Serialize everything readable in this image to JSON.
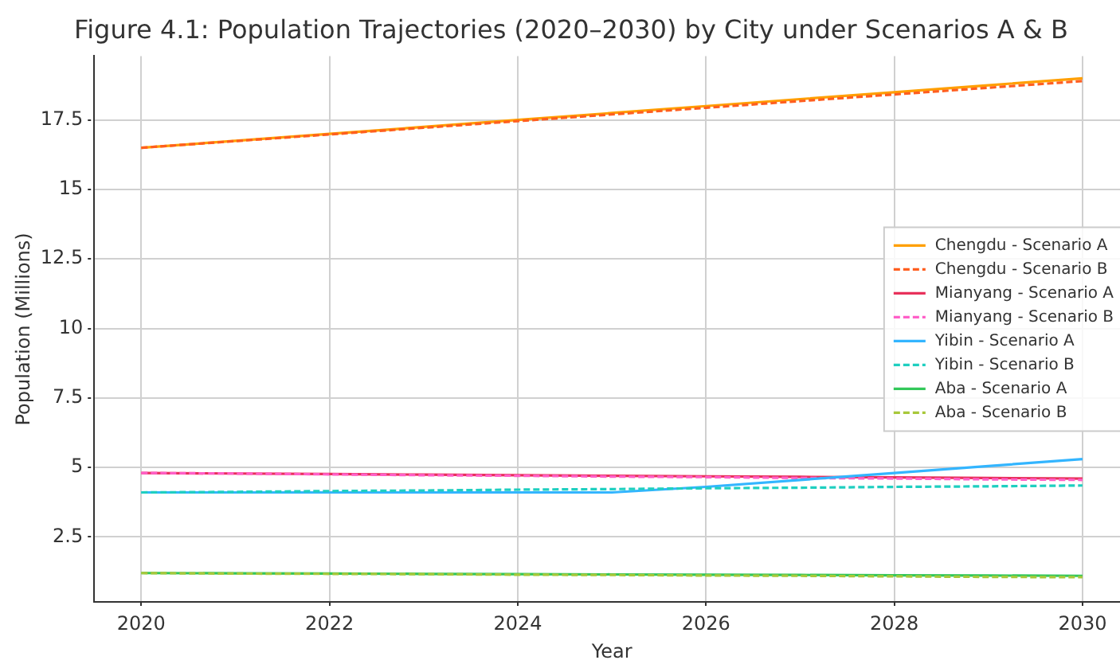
{
  "chart_data": {
    "type": "line",
    "title": "Figure 4.1: Population Trajectories (2020–2030) by City under Scenarios A & B",
    "xlabel": "Year",
    "ylabel": "Population (Millions)",
    "x": [
      2020,
      2021,
      2022,
      2023,
      2024,
      2025,
      2026,
      2027,
      2028,
      2029,
      2030
    ],
    "series": [
      {
        "name": "Chengdu - Scenario A",
        "color": "#ff9f00",
        "line_style": "solid",
        "values": [
          16.5,
          16.75,
          17.0,
          17.25,
          17.5,
          17.75,
          18.0,
          18.25,
          18.5,
          18.75,
          19.0
        ]
      },
      {
        "name": "Chengdu - Scenario B",
        "color": "#ff5e1f",
        "line_style": "dashed",
        "values": [
          16.5,
          16.74,
          16.98,
          17.22,
          17.46,
          17.7,
          17.94,
          18.18,
          18.42,
          18.66,
          18.9
        ]
      },
      {
        "name": "Mianyang - Scenario A",
        "color": "#e8315b",
        "line_style": "solid",
        "values": [
          4.8,
          4.78,
          4.76,
          4.74,
          4.72,
          4.7,
          4.68,
          4.66,
          4.64,
          4.62,
          4.6
        ]
      },
      {
        "name": "Mianyang - Scenario B",
        "color": "#ff5fc8",
        "line_style": "dashed",
        "values": [
          4.8,
          4.78,
          4.75,
          4.72,
          4.7,
          4.67,
          4.65,
          4.62,
          4.6,
          4.57,
          4.55
        ]
      },
      {
        "name": "Yibin - Scenario A",
        "color": "#33b5ff",
        "line_style": "solid",
        "values": [
          4.1,
          4.1,
          4.1,
          4.1,
          4.1,
          4.1,
          4.3,
          4.55,
          4.8,
          5.05,
          5.3
        ]
      },
      {
        "name": "Yibin - Scenario B",
        "color": "#1fcfc0",
        "line_style": "dashed",
        "values": [
          4.1,
          4.12,
          4.15,
          4.17,
          4.2,
          4.22,
          4.25,
          4.27,
          4.3,
          4.32,
          4.35
        ]
      },
      {
        "name": "Aba - Scenario A",
        "color": "#33c85a",
        "line_style": "solid",
        "values": [
          1.2,
          1.19,
          1.18,
          1.17,
          1.16,
          1.15,
          1.14,
          1.13,
          1.12,
          1.11,
          1.1
        ]
      },
      {
        "name": "Aba - Scenario B",
        "color": "#a8c83a",
        "line_style": "dashed",
        "values": [
          1.2,
          1.18,
          1.17,
          1.16,
          1.14,
          1.13,
          1.11,
          1.1,
          1.08,
          1.06,
          1.05
        ]
      }
    ],
    "xlim": [
      2019.5,
      2030.5
    ],
    "xticks": [
      2020,
      2022,
      2024,
      2026,
      2028,
      2030
    ],
    "ylim": [
      0.15,
      19.8
    ],
    "yticks": [
      2.5,
      5.0,
      7.5,
      10.0,
      12.5,
      15.0,
      17.5
    ],
    "grid": true,
    "legend": "right",
    "marker": "none"
  }
}
